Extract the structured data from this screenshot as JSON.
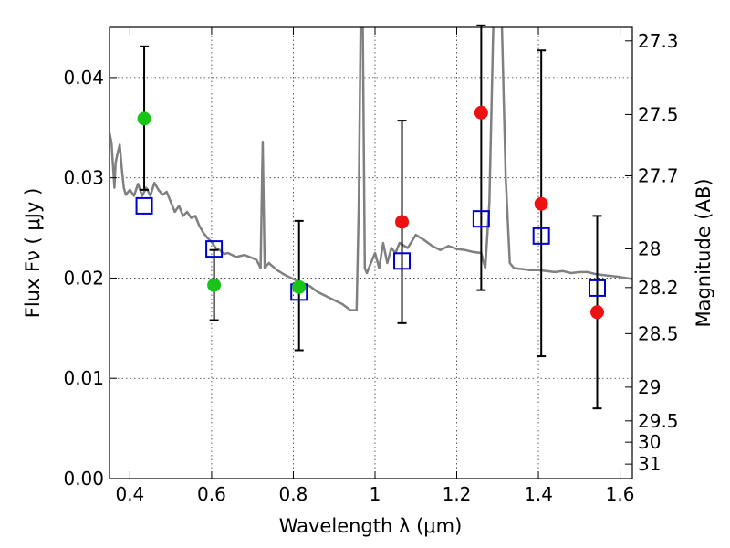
{
  "chart_data": {
    "type": "scatter",
    "xlabel": "Wavelength  λ (μm)",
    "ylabel": "Flux  Fν  ( μJy )",
    "y2label": "Magnitude (AB)",
    "xlim": [
      0.35,
      1.63
    ],
    "ylim": [
      0.0,
      0.045
    ],
    "x_ticks": [
      {
        "value": 0.4,
        "label": "0.4"
      },
      {
        "value": 0.6,
        "label": "0.6"
      },
      {
        "value": 0.8,
        "label": "0.8"
      },
      {
        "value": 1.0,
        "label": "1"
      },
      {
        "value": 1.2,
        "label": "1.2"
      },
      {
        "value": 1.4,
        "label": "1.4"
      },
      {
        "value": 1.6,
        "label": "1.6"
      }
    ],
    "y_ticks": [
      {
        "value": 0.0,
        "label": "0.00"
      },
      {
        "value": 0.01,
        "label": "0.01"
      },
      {
        "value": 0.02,
        "label": "0.02"
      },
      {
        "value": 0.03,
        "label": "0.03"
      },
      {
        "value": 0.04,
        "label": "0.04"
      }
    ],
    "mag_ticks": [
      {
        "value": 27.3,
        "label": "27.3"
      },
      {
        "value": 27.5,
        "label": "27.5"
      },
      {
        "value": 27.7,
        "label": "27.7"
      },
      {
        "value": 28.0,
        "label": "28"
      },
      {
        "value": 28.2,
        "label": "28.2"
      },
      {
        "value": 28.5,
        "label": "28.5"
      },
      {
        "value": 29.0,
        "label": "29"
      },
      {
        "value": 29.5,
        "label": "29.5"
      },
      {
        "value": 30.0,
        "label": "30"
      },
      {
        "value": 31.0,
        "label": "31"
      }
    ],
    "mag_zeropoint": 23.9,
    "grid": true,
    "colors": {
      "template": "#808080",
      "green": "#18c418",
      "red": "#ee1111",
      "model_box": "#0000cc",
      "errorbar": "#000000"
    },
    "template_spectrum": [
      [
        0.35,
        0.0345
      ],
      [
        0.355,
        0.0335
      ],
      [
        0.358,
        0.0315
      ],
      [
        0.362,
        0.029
      ],
      [
        0.365,
        0.0315
      ],
      [
        0.37,
        0.0325
      ],
      [
        0.375,
        0.0333
      ],
      [
        0.38,
        0.031
      ],
      [
        0.385,
        0.029
      ],
      [
        0.39,
        0.0283
      ],
      [
        0.4,
        0.0288
      ],
      [
        0.41,
        0.0282
      ],
      [
        0.42,
        0.0294
      ],
      [
        0.43,
        0.0282
      ],
      [
        0.44,
        0.029
      ],
      [
        0.45,
        0.0282
      ],
      [
        0.46,
        0.0295
      ],
      [
        0.47,
        0.0288
      ],
      [
        0.48,
        0.0283
      ],
      [
        0.49,
        0.0286
      ],
      [
        0.5,
        0.0276
      ],
      [
        0.51,
        0.0266
      ],
      [
        0.52,
        0.0272
      ],
      [
        0.53,
        0.0262
      ],
      [
        0.54,
        0.0266
      ],
      [
        0.55,
        0.026
      ],
      [
        0.56,
        0.0262
      ],
      [
        0.57,
        0.0252
      ],
      [
        0.58,
        0.0245
      ],
      [
        0.59,
        0.024
      ],
      [
        0.6,
        0.0236
      ],
      [
        0.61,
        0.023
      ],
      [
        0.62,
        0.0228
      ],
      [
        0.63,
        0.0224
      ],
      [
        0.64,
        0.0225
      ],
      [
        0.66,
        0.0221
      ],
      [
        0.68,
        0.0223
      ],
      [
        0.7,
        0.022
      ],
      [
        0.71,
        0.0218
      ],
      [
        0.72,
        0.021
      ],
      [
        0.725,
        0.0336
      ],
      [
        0.73,
        0.021
      ],
      [
        0.74,
        0.0215
      ],
      [
        0.76,
        0.0208
      ],
      [
        0.78,
        0.0203
      ],
      [
        0.8,
        0.0199
      ],
      [
        0.82,
        0.0195
      ],
      [
        0.84,
        0.0192
      ],
      [
        0.86,
        0.0186
      ],
      [
        0.88,
        0.0182
      ],
      [
        0.9,
        0.0178
      ],
      [
        0.92,
        0.0174
      ],
      [
        0.94,
        0.0168
      ],
      [
        0.955,
        0.0168
      ],
      [
        0.96,
        0.027
      ],
      [
        0.965,
        0.046
      ],
      [
        0.97,
        0.046
      ],
      [
        0.975,
        0.021
      ],
      [
        0.98,
        0.0205
      ],
      [
        0.99,
        0.0215
      ],
      [
        1.0,
        0.0225
      ],
      [
        1.01,
        0.021
      ],
      [
        1.02,
        0.0235
      ],
      [
        1.03,
        0.0215
      ],
      [
        1.04,
        0.023
      ],
      [
        1.05,
        0.0225
      ],
      [
        1.06,
        0.0235
      ],
      [
        1.08,
        0.023
      ],
      [
        1.1,
        0.0243
      ],
      [
        1.12,
        0.0238
      ],
      [
        1.14,
        0.0232
      ],
      [
        1.16,
        0.0228
      ],
      [
        1.18,
        0.0232
      ],
      [
        1.2,
        0.0229
      ],
      [
        1.22,
        0.0228
      ],
      [
        1.24,
        0.0226
      ],
      [
        1.26,
        0.0225
      ],
      [
        1.27,
        0.021
      ],
      [
        1.28,
        0.0275
      ],
      [
        1.29,
        0.046
      ],
      [
        1.31,
        0.046
      ],
      [
        1.32,
        0.03
      ],
      [
        1.33,
        0.0215
      ],
      [
        1.34,
        0.021
      ],
      [
        1.36,
        0.0209
      ],
      [
        1.38,
        0.0208
      ],
      [
        1.4,
        0.0208
      ],
      [
        1.42,
        0.0207
      ],
      [
        1.44,
        0.0206
      ],
      [
        1.46,
        0.0207
      ],
      [
        1.48,
        0.0205
      ],
      [
        1.5,
        0.0206
      ],
      [
        1.52,
        0.0206
      ],
      [
        1.54,
        0.0204
      ],
      [
        1.56,
        0.0203
      ],
      [
        1.58,
        0.0202
      ],
      [
        1.6,
        0.0201
      ],
      [
        1.63,
        0.0199
      ]
    ],
    "photometry": [
      {
        "x": 0.435,
        "flux": 0.0359,
        "err_lo": 0.0288,
        "err_hi": 0.0431,
        "color": "green"
      },
      {
        "x": 0.606,
        "flux": 0.0193,
        "err_lo": 0.0158,
        "err_hi": 0.0228,
        "color": "green"
      },
      {
        "x": 0.814,
        "flux": 0.0191,
        "err_lo": 0.0128,
        "err_hi": 0.0257,
        "color": "green"
      },
      {
        "x": 1.066,
        "flux": 0.0256,
        "err_lo": 0.0155,
        "err_hi": 0.0357,
        "color": "red"
      },
      {
        "x": 1.26,
        "flux": 0.0365,
        "err_lo": 0.0188,
        "err_hi": 0.0452,
        "color": "red"
      },
      {
        "x": 1.407,
        "flux": 0.0274,
        "err_lo": 0.0122,
        "err_hi": 0.0427,
        "color": "red"
      },
      {
        "x": 1.544,
        "flux": 0.0166,
        "err_lo": 0.007,
        "err_hi": 0.0262,
        "color": "red"
      }
    ],
    "model_photometry": [
      {
        "x": 0.435,
        "flux": 0.0272
      },
      {
        "x": 0.606,
        "flux": 0.0229
      },
      {
        "x": 0.814,
        "flux": 0.0186
      },
      {
        "x": 1.066,
        "flux": 0.0217
      },
      {
        "x": 1.26,
        "flux": 0.0259
      },
      {
        "x": 1.407,
        "flux": 0.0242
      },
      {
        "x": 1.544,
        "flux": 0.019
      }
    ]
  }
}
